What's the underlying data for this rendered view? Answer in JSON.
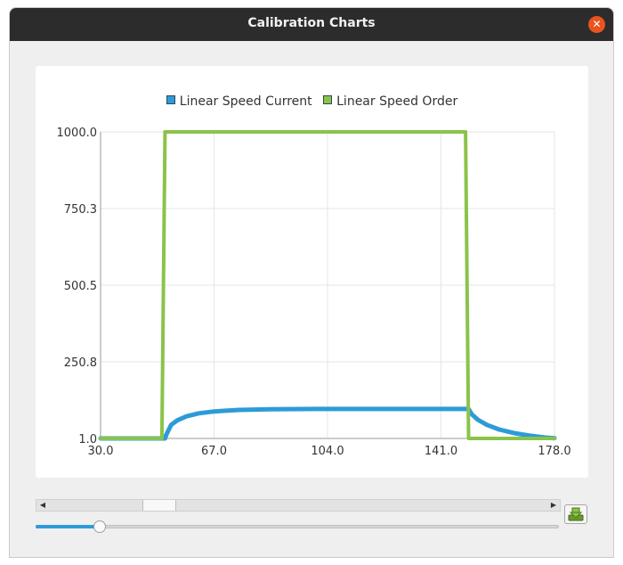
{
  "window": {
    "title": "Calibration Charts"
  },
  "icons": {
    "close": "close-icon",
    "save": "download-save-icon",
    "scroll_left": "arrow-left-icon",
    "scroll_right": "arrow-right-icon"
  },
  "chart_data": {
    "type": "line",
    "legend": [
      "Linear Speed Current",
      "Linear Speed Order"
    ],
    "legend_placement": "top",
    "grid": true,
    "xlim": [
      30.0,
      178.0
    ],
    "ylim": [
      1.0,
      1000.0
    ],
    "x_ticks": [
      "30.0",
      "67.0",
      "104.0",
      "141.0",
      "178.0"
    ],
    "y_ticks": [
      "1000.0",
      "750.3",
      "500.5",
      "250.8",
      "1.0"
    ],
    "series": [
      {
        "name": "Linear Speed Current",
        "color": "#2d9bd8",
        "x": [
          30,
          50,
          51,
          51.5,
          53,
          55,
          58,
          62,
          67,
          75,
          85,
          100,
          120,
          140,
          149,
          150,
          151,
          153,
          156,
          160,
          165,
          170,
          175,
          178
        ],
        "y": [
          1,
          1,
          1,
          15,
          45,
          60,
          73,
          83,
          89,
          94,
          96,
          97,
          97,
          97,
          97,
          97,
          80,
          62,
          45,
          30,
          18,
          10,
          4,
          2
        ]
      },
      {
        "name": "Linear Speed Order",
        "color": "#8bc34a",
        "x": [
          30,
          50,
          51,
          149,
          150,
          178
        ],
        "y": [
          1,
          1,
          1000,
          1000,
          1,
          1
        ]
      }
    ]
  },
  "slider": {
    "value_fraction": 0.12
  }
}
